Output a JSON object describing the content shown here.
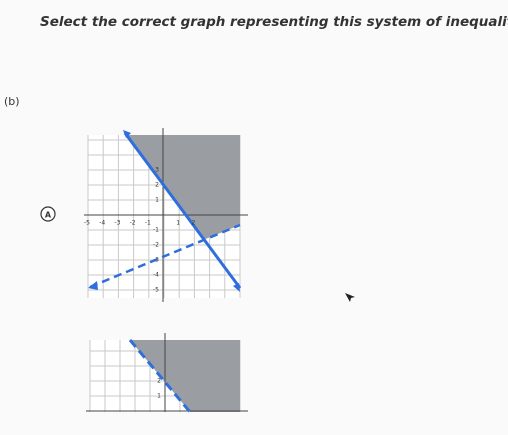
{
  "question": "Select the correct graph representing this system of inequalities.",
  "part": "(b)",
  "options": [
    {
      "label": "A",
      "graph": {
        "x_tick_labels": [
          "-5",
          "-4",
          "-3",
          "-2",
          "-1",
          "1",
          "2"
        ],
        "y_tick_labels": [
          "3",
          "2",
          "1",
          "-1",
          "-2",
          "-3",
          "-4",
          "-5"
        ]
      }
    },
    {
      "graph": {
        "y_tick_labels": [
          "2",
          "1"
        ]
      }
    }
  ]
}
